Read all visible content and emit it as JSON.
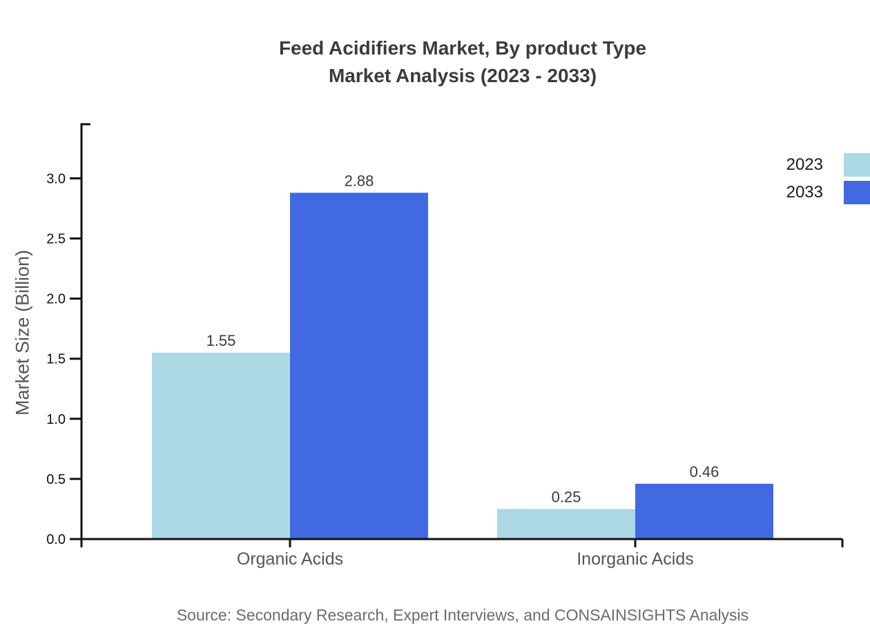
{
  "title": {
    "line1": "Feed Acidifiers Market, By product Type",
    "line2": "Market Analysis (2023 - 2033)"
  },
  "y_axis": {
    "label": "Market Size (Billion)"
  },
  "legend": {
    "items": [
      {
        "label": "2023",
        "color": "#ADD8E6"
      },
      {
        "label": "2033",
        "color": "#4169E1"
      }
    ]
  },
  "source": {
    "text": "Source: Secondary Research, Expert Interviews, and CONSAINSIGHTS Analysis"
  },
  "chart_data": {
    "type": "bar",
    "title": "Feed Acidifiers Market, By product Type Market Analysis (2023 - 2033)",
    "categories": [
      "Organic Acids",
      "Inorganic Acids"
    ],
    "series": [
      {
        "name": "2023",
        "color": "#ADD8E6",
        "values": [
          1.55,
          0.25
        ]
      },
      {
        "name": "2033",
        "color": "#4169E1",
        "values": [
          2.88,
          0.46
        ]
      }
    ],
    "value_labels": [
      [
        "1.55",
        "0.25"
      ],
      [
        "2.88",
        "0.46"
      ]
    ],
    "xlabel": "",
    "ylabel": "Market Size (Billion)",
    "ylim": [
      0,
      3.45
    ],
    "yticks": [
      0.0,
      0.5,
      1.0,
      1.5,
      2.0,
      2.5,
      3.0
    ],
    "ytick_labels": [
      "0.0",
      "0.5",
      "1.0",
      "1.5",
      "2.0",
      "2.5",
      "3.0"
    ],
    "grid": false,
    "legend_position": "top-right",
    "colors": {
      "axis": "#111111",
      "tick_label": "#111111",
      "category_label": "#555555",
      "value_label": "#3a3a3a",
      "title": "#3b3b3b",
      "source": "#6b6b6b"
    }
  }
}
